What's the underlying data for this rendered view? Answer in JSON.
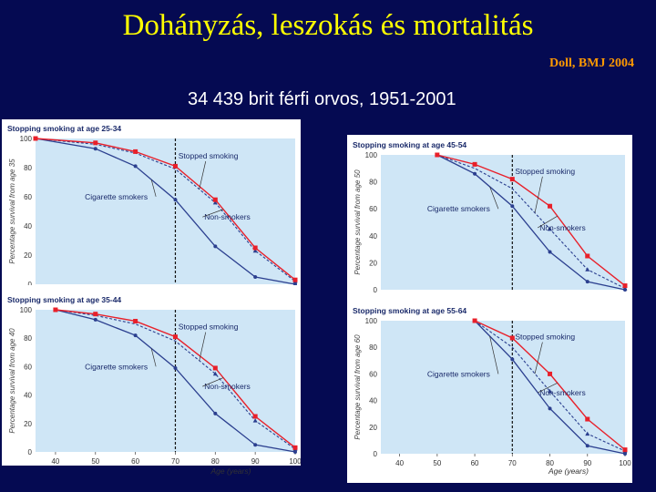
{
  "slide": {
    "title": "Dohányzás, leszokás és mortalitás",
    "citation": "Doll, BMJ 2004",
    "subtitle": "34 439 brit férfi orvos, 1951-2001"
  },
  "colors": {
    "background": "#050a52",
    "title": "#ffff00",
    "citation": "#ff9900",
    "plot_bg": "#cfe6f6",
    "non_smokers": "#e8202a",
    "stopped": "#2b3f8f",
    "smokers": "#2b3f8f"
  },
  "labels": {
    "stopped": "Stopped smoking",
    "smokers": "Cigarette smokers",
    "non_smokers": "Non-smokers",
    "xlabel": "Age (years)"
  },
  "chart_data": [
    {
      "type": "line",
      "title": "Stopping smoking at age 25-34",
      "ylabel": "Percentage survival from age 35",
      "xlim": [
        35,
        100
      ],
      "ylim": [
        0,
        100
      ],
      "stop_age": 70,
      "yticks": [
        "0",
        "20",
        "40",
        "60",
        "80",
        "100"
      ],
      "xticks": [],
      "show_xlabel": false,
      "series": [
        {
          "key": "non_smokers",
          "x": [
            35,
            50,
            60,
            70,
            80,
            90,
            100
          ],
          "y": [
            100,
            97,
            91,
            81,
            58,
            25,
            3
          ]
        },
        {
          "key": "stopped",
          "x": [
            35,
            50,
            60,
            70,
            80,
            90,
            100
          ],
          "y": [
            100,
            96,
            90,
            79,
            56,
            23,
            2
          ]
        },
        {
          "key": "smokers",
          "x": [
            35,
            50,
            60,
            70,
            80,
            90,
            100
          ],
          "y": [
            100,
            93,
            81,
            58,
            26,
            5,
            0
          ]
        }
      ]
    },
    {
      "type": "line",
      "title": "Stopping smoking at age 45-54",
      "ylabel": "Percentage survival from age 50",
      "xlim": [
        35,
        100
      ],
      "ylim": [
        0,
        100
      ],
      "stop_age": 70,
      "yticks": [
        "0",
        "20",
        "40",
        "60",
        "80",
        "100"
      ],
      "xticks": [],
      "show_xlabel": false,
      "series": [
        {
          "key": "non_smokers",
          "x": [
            50,
            60,
            70,
            80,
            90,
            100
          ],
          "y": [
            100,
            93,
            82,
            62,
            25,
            3
          ]
        },
        {
          "key": "stopped",
          "x": [
            50,
            60,
            70,
            80,
            90,
            100
          ],
          "y": [
            100,
            90,
            75,
            45,
            15,
            1
          ]
        },
        {
          "key": "smokers",
          "x": [
            50,
            60,
            70,
            80,
            90,
            100
          ],
          "y": [
            100,
            86,
            62,
            28,
            6,
            0
          ]
        }
      ]
    },
    {
      "type": "line",
      "title": "Stopping smoking at age 35-44",
      "ylabel": "Percentage survival from age 40",
      "xlim": [
        35,
        100
      ],
      "ylim": [
        0,
        100
      ],
      "stop_age": 70,
      "yticks": [
        "0",
        "20",
        "40",
        "60",
        "80",
        "100"
      ],
      "xticks": [
        "40",
        "50",
        "60",
        "70",
        "80",
        "90",
        "100"
      ],
      "show_xlabel": true,
      "series": [
        {
          "key": "non_smokers",
          "x": [
            40,
            50,
            60,
            70,
            80,
            90,
            100
          ],
          "y": [
            100,
            97,
            92,
            81,
            59,
            25,
            3
          ]
        },
        {
          "key": "stopped",
          "x": [
            40,
            50,
            60,
            70,
            80,
            90,
            100
          ],
          "y": [
            100,
            96,
            90,
            78,
            55,
            22,
            2
          ]
        },
        {
          "key": "smokers",
          "x": [
            40,
            50,
            60,
            70,
            80,
            90,
            100
          ],
          "y": [
            100,
            93,
            82,
            59,
            27,
            5,
            0
          ]
        }
      ]
    },
    {
      "type": "line",
      "title": "Stopping smoking at age 55-64",
      "ylabel": "Percentage survival from age 60",
      "xlim": [
        35,
        100
      ],
      "ylim": [
        0,
        100
      ],
      "stop_age": 70,
      "yticks": [
        "0",
        "20",
        "40",
        "60",
        "80",
        "100"
      ],
      "xticks": [
        "40",
        "50",
        "60",
        "70",
        "80",
        "90",
        "100"
      ],
      "show_xlabel": true,
      "series": [
        {
          "key": "non_smokers",
          "x": [
            60,
            70,
            80,
            90,
            100
          ],
          "y": [
            100,
            87,
            60,
            26,
            3
          ]
        },
        {
          "key": "stopped",
          "x": [
            60,
            70,
            80,
            90,
            100
          ],
          "y": [
            100,
            80,
            47,
            15,
            2
          ]
        },
        {
          "key": "smokers",
          "x": [
            60,
            70,
            80,
            90,
            100
          ],
          "y": [
            100,
            71,
            34,
            6,
            0
          ]
        }
      ]
    }
  ]
}
